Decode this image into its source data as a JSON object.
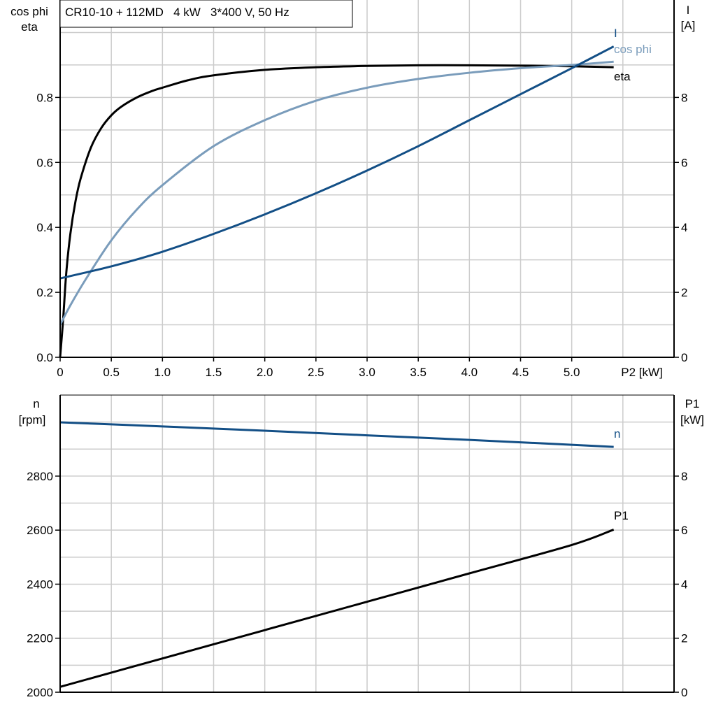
{
  "chart_data": [
    {
      "type": "line",
      "title": "CR10-10 + 112MD   4 kW   3*400 V, 50 Hz",
      "xlabel": "P2 [kW]",
      "ylabel_left": [
        "cos phi",
        "eta"
      ],
      "ylabel_right": [
        "I",
        "[A]"
      ],
      "xlim": [
        0,
        6
      ],
      "ylim_left": [
        0,
        1.1
      ],
      "ylim_right": [
        0,
        11
      ],
      "grid": true,
      "xticks": [
        "0",
        "0.5",
        "1.0",
        "1.5",
        "2.0",
        "2.5",
        "3.0",
        "3.5",
        "4.0",
        "4.5",
        "5.0",
        "P2 [kW]"
      ],
      "xtick_values": [
        0,
        0.5,
        1,
        1.5,
        2,
        2.5,
        3,
        3.5,
        4,
        4.5,
        5
      ],
      "yticks_left": [
        "0.0",
        "0.2",
        "0.4",
        "0.6",
        "0.8"
      ],
      "ytick_left_values": [
        0,
        0.2,
        0.4,
        0.6,
        0.8
      ],
      "yticks_right": [
        "0",
        "2",
        "4",
        "6",
        "8"
      ],
      "ytick_right_values": [
        0,
        2,
        4,
        6,
        8
      ],
      "series": [
        {
          "name": "eta",
          "axis": "left",
          "color": "#000000",
          "x": [
            0,
            0.03,
            0.06,
            0.1,
            0.15,
            0.2,
            0.3,
            0.4,
            0.5,
            0.6,
            0.75,
            0.9,
            1.0,
            1.25,
            1.5,
            2.0,
            2.5,
            3.0,
            3.5,
            4.0,
            4.5,
            5.0,
            5.41
          ],
          "y": [
            0,
            0.12,
            0.26,
            0.38,
            0.48,
            0.55,
            0.645,
            0.705,
            0.745,
            0.772,
            0.8,
            0.82,
            0.83,
            0.853,
            0.868,
            0.885,
            0.893,
            0.897,
            0.899,
            0.899,
            0.898,
            0.896,
            0.893
          ]
        },
        {
          "name": "cos phi",
          "axis": "left",
          "color": "#7a9cbb",
          "x": [
            0,
            0.1,
            0.25,
            0.5,
            0.75,
            1.0,
            1.5,
            2.0,
            2.5,
            3.0,
            3.5,
            4.0,
            4.5,
            5.0,
            5.41
          ],
          "y": [
            0.1,
            0.16,
            0.24,
            0.36,
            0.455,
            0.53,
            0.65,
            0.73,
            0.79,
            0.83,
            0.857,
            0.876,
            0.89,
            0.9,
            0.91
          ]
        },
        {
          "name": "I",
          "axis": "right",
          "color": "#134f86",
          "x": [
            0,
            0.5,
            1.0,
            1.5,
            2.0,
            2.5,
            3.0,
            3.5,
            4.0,
            4.5,
            5.0,
            5.41
          ],
          "y": [
            2.43,
            2.8,
            3.25,
            3.8,
            4.4,
            5.05,
            5.75,
            6.5,
            7.3,
            8.1,
            8.9,
            9.57
          ]
        }
      ]
    },
    {
      "type": "line",
      "ylabel_left": [
        "n",
        "[rpm]"
      ],
      "ylabel_right": [
        "P1",
        "[kW]"
      ],
      "xlim": [
        0,
        6
      ],
      "ylim_left": [
        2000,
        3100
      ],
      "ylim_right": [
        0,
        11
      ],
      "grid": true,
      "yticks_left": [
        "2000",
        "2200",
        "2400",
        "2600",
        "2800"
      ],
      "ytick_left_values": [
        2000,
        2200,
        2400,
        2600,
        2800
      ],
      "yticks_right": [
        "0",
        "2",
        "4",
        "6",
        "8"
      ],
      "ytick_right_values": [
        0,
        2,
        4,
        6,
        8
      ],
      "series": [
        {
          "name": "n",
          "axis": "left",
          "color": "#134f86",
          "x": [
            0,
            1,
            2,
            3,
            4,
            5,
            5.41
          ],
          "y": [
            2999,
            2984,
            2968,
            2951,
            2934,
            2916,
            2908
          ]
        },
        {
          "name": "P1",
          "axis": "right",
          "color": "#000000",
          "x": [
            0,
            1,
            2,
            3,
            4,
            5,
            5.41
          ],
          "y": [
            0.2,
            1.25,
            2.3,
            3.35,
            4.4,
            5.45,
            6.02
          ]
        }
      ]
    }
  ]
}
